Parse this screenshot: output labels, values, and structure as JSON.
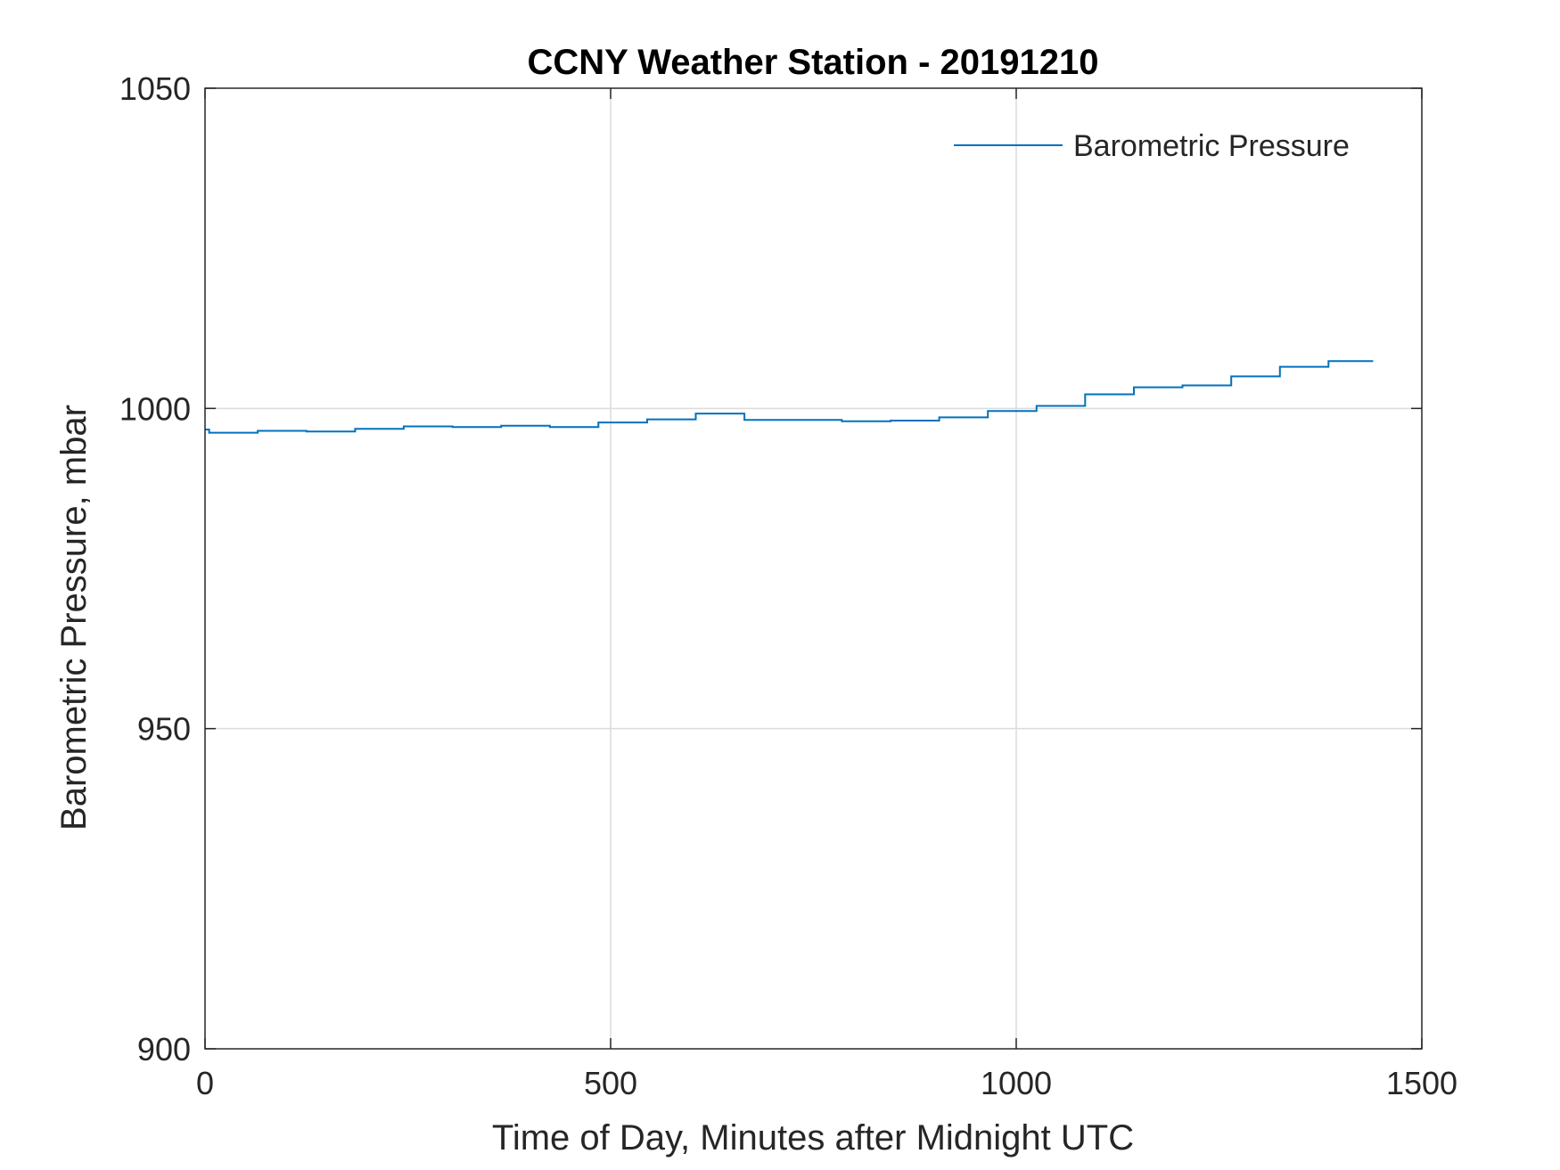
{
  "chart_data": {
    "type": "line",
    "title": "CCNY Weather Station - 20191210",
    "xlabel": "Time of Day, Minutes after Midnight UTC",
    "ylabel": "Barometric Pressure, mbar",
    "xlim": [
      0,
      1500
    ],
    "ylim": [
      900,
      1050
    ],
    "xticks": [
      0,
      500,
      1000,
      1500
    ],
    "yticks": [
      900,
      950,
      1000,
      1050
    ],
    "xtick_labels": [
      "0",
      "500",
      "1000",
      "1500"
    ],
    "ytick_labels": [
      "900",
      "950",
      "1000",
      "1050"
    ],
    "grid": true,
    "legend_position": "top-right",
    "series": [
      {
        "name": "Barometric Pressure",
        "color": "#0072BD",
        "step": true,
        "x": [
          0,
          5,
          65,
          125,
          185,
          245,
          305,
          365,
          425,
          485,
          545,
          605,
          665,
          725,
          785,
          845,
          905,
          965,
          1025,
          1085,
          1145,
          1205,
          1265,
          1325,
          1385,
          1440
        ],
        "y": [
          996.7,
          996.2,
          996.5,
          996.4,
          996.8,
          997.2,
          997.1,
          997.3,
          997.1,
          997.8,
          998.3,
          999.2,
          998.2,
          998.2,
          998.0,
          998.1,
          998.6,
          999.6,
          1000.4,
          1002.2,
          1003.3,
          1003.6,
          1005.0,
          1006.5,
          1007.4,
          1007.4
        ]
      }
    ]
  }
}
